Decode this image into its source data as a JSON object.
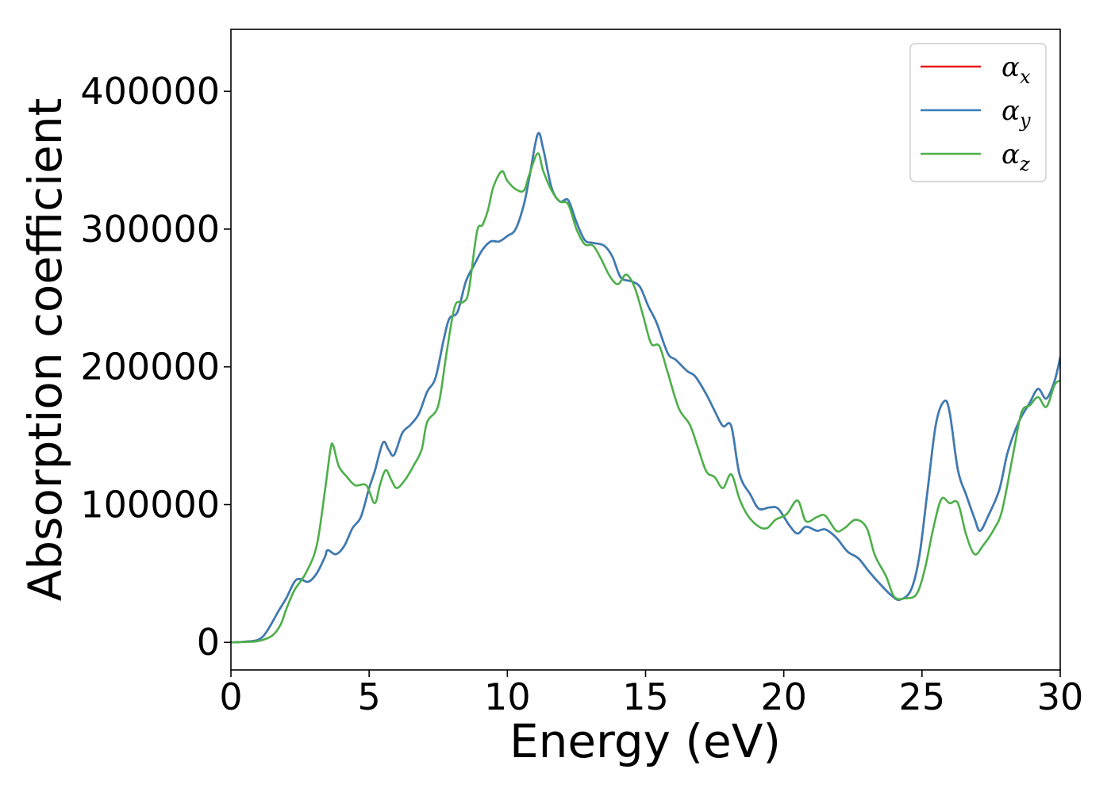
{
  "chart_data": {
    "type": "line",
    "title": "",
    "xlabel": "Energy (eV)",
    "ylabel": "Absorption coefficient",
    "xlim": [
      0,
      30
    ],
    "ylim": [
      -20000,
      445000
    ],
    "xticks": [
      0,
      5,
      10,
      15,
      20,
      25,
      30
    ],
    "xtick_labels": [
      "0",
      "5",
      "10",
      "15",
      "20",
      "25",
      "30"
    ],
    "yticks": [
      0,
      100000,
      200000,
      300000,
      400000
    ],
    "ytick_labels": [
      "0",
      "100000",
      "200000",
      "300000",
      "400000"
    ],
    "grid": false,
    "legend_position": "top-right",
    "series": [
      {
        "name": "αx",
        "symbol": "α",
        "subscript": "x",
        "color": "#e41a1c",
        "points": [
          [
            0,
            0
          ],
          [
            0.5,
            500
          ],
          [
            1.0,
            2000
          ],
          [
            1.3,
            8000
          ],
          [
            1.7,
            22000
          ],
          [
            2.0,
            32000
          ],
          [
            2.3,
            44000
          ],
          [
            2.5,
            46000
          ],
          [
            2.8,
            44000
          ],
          [
            3.1,
            50000
          ],
          [
            3.4,
            62000
          ],
          [
            3.5,
            67000
          ],
          [
            3.8,
            64000
          ],
          [
            4.1,
            70000
          ],
          [
            4.4,
            83000
          ],
          [
            4.7,
            91000
          ],
          [
            5.0,
            112000
          ],
          [
            5.2,
            124000
          ],
          [
            5.5,
            145000
          ],
          [
            5.7,
            140000
          ],
          [
            5.9,
            136000
          ],
          [
            6.2,
            152000
          ],
          [
            6.5,
            158000
          ],
          [
            6.8,
            166000
          ],
          [
            7.1,
            182000
          ],
          [
            7.4,
            192000
          ],
          [
            7.7,
            220000
          ],
          [
            7.9,
            235000
          ],
          [
            8.2,
            240000
          ],
          [
            8.5,
            262000
          ],
          [
            8.8,
            274000
          ],
          [
            9.1,
            285000
          ],
          [
            9.4,
            291000
          ],
          [
            9.7,
            291000
          ],
          [
            10.0,
            295000
          ],
          [
            10.3,
            300000
          ],
          [
            10.6,
            318000
          ],
          [
            10.8,
            338000
          ],
          [
            11.1,
            369000
          ],
          [
            11.3,
            358000
          ],
          [
            11.6,
            330000
          ],
          [
            11.9,
            320000
          ],
          [
            12.2,
            321000
          ],
          [
            12.5,
            305000
          ],
          [
            12.8,
            292000
          ],
          [
            13.1,
            290000
          ],
          [
            13.5,
            288000
          ],
          [
            13.8,
            280000
          ],
          [
            14.1,
            265000
          ],
          [
            14.5,
            262000
          ],
          [
            14.8,
            258000
          ],
          [
            15.1,
            244000
          ],
          [
            15.4,
            232000
          ],
          [
            15.8,
            210000
          ],
          [
            16.1,
            205000
          ],
          [
            16.5,
            197000
          ],
          [
            16.8,
            193000
          ],
          [
            17.2,
            180000
          ],
          [
            17.5,
            168000
          ],
          [
            17.8,
            157000
          ],
          [
            18.1,
            157000
          ],
          [
            18.4,
            122000
          ],
          [
            18.8,
            107000
          ],
          [
            19.1,
            97000
          ],
          [
            19.5,
            98000
          ],
          [
            19.8,
            97000
          ],
          [
            20.2,
            85000
          ],
          [
            20.5,
            79000
          ],
          [
            20.8,
            84000
          ],
          [
            21.2,
            81000
          ],
          [
            21.5,
            82000
          ],
          [
            21.9,
            76000
          ],
          [
            22.3,
            66000
          ],
          [
            22.7,
            61000
          ],
          [
            23.1,
            51000
          ],
          [
            23.5,
            42000
          ],
          [
            23.9,
            34000
          ],
          [
            24.2,
            31000
          ],
          [
            24.6,
            38000
          ],
          [
            24.9,
            62000
          ],
          [
            25.2,
            110000
          ],
          [
            25.5,
            158000
          ],
          [
            25.8,
            175000
          ],
          [
            26.0,
            167000
          ],
          [
            26.3,
            125000
          ],
          [
            26.6,
            107000
          ],
          [
            26.9,
            90000
          ],
          [
            27.1,
            81000
          ],
          [
            27.4,
            92000
          ],
          [
            27.8,
            111000
          ],
          [
            28.1,
            138000
          ],
          [
            28.5,
            160000
          ],
          [
            28.9,
            174000
          ],
          [
            29.2,
            184000
          ],
          [
            29.5,
            177000
          ],
          [
            29.8,
            190000
          ],
          [
            30.0,
            207000
          ]
        ]
      },
      {
        "name": "αy",
        "symbol": "α",
        "subscript": "y",
        "color": "#377eb8",
        "points": [
          [
            0,
            0
          ],
          [
            0.5,
            500
          ],
          [
            1.0,
            2000
          ],
          [
            1.3,
            8000
          ],
          [
            1.7,
            22000
          ],
          [
            2.0,
            32000
          ],
          [
            2.3,
            44000
          ],
          [
            2.5,
            46000
          ],
          [
            2.8,
            44000
          ],
          [
            3.1,
            50000
          ],
          [
            3.4,
            62000
          ],
          [
            3.5,
            67000
          ],
          [
            3.8,
            64000
          ],
          [
            4.1,
            70000
          ],
          [
            4.4,
            83000
          ],
          [
            4.7,
            91000
          ],
          [
            5.0,
            112000
          ],
          [
            5.2,
            124000
          ],
          [
            5.5,
            145000
          ],
          [
            5.7,
            140000
          ],
          [
            5.9,
            136000
          ],
          [
            6.2,
            152000
          ],
          [
            6.5,
            158000
          ],
          [
            6.8,
            166000
          ],
          [
            7.1,
            182000
          ],
          [
            7.4,
            192000
          ],
          [
            7.7,
            220000
          ],
          [
            7.9,
            235000
          ],
          [
            8.2,
            240000
          ],
          [
            8.5,
            262000
          ],
          [
            8.8,
            274000
          ],
          [
            9.1,
            285000
          ],
          [
            9.4,
            291000
          ],
          [
            9.7,
            291000
          ],
          [
            10.0,
            295000
          ],
          [
            10.3,
            300000
          ],
          [
            10.6,
            318000
          ],
          [
            10.8,
            338000
          ],
          [
            11.1,
            369000
          ],
          [
            11.3,
            358000
          ],
          [
            11.6,
            330000
          ],
          [
            11.9,
            320000
          ],
          [
            12.2,
            321000
          ],
          [
            12.5,
            305000
          ],
          [
            12.8,
            292000
          ],
          [
            13.1,
            290000
          ],
          [
            13.5,
            288000
          ],
          [
            13.8,
            280000
          ],
          [
            14.1,
            265000
          ],
          [
            14.5,
            262000
          ],
          [
            14.8,
            258000
          ],
          [
            15.1,
            244000
          ],
          [
            15.4,
            232000
          ],
          [
            15.8,
            210000
          ],
          [
            16.1,
            205000
          ],
          [
            16.5,
            197000
          ],
          [
            16.8,
            193000
          ],
          [
            17.2,
            180000
          ],
          [
            17.5,
            168000
          ],
          [
            17.8,
            157000
          ],
          [
            18.1,
            157000
          ],
          [
            18.4,
            122000
          ],
          [
            18.8,
            107000
          ],
          [
            19.1,
            97000
          ],
          [
            19.5,
            98000
          ],
          [
            19.8,
            97000
          ],
          [
            20.2,
            85000
          ],
          [
            20.5,
            79000
          ],
          [
            20.8,
            84000
          ],
          [
            21.2,
            81000
          ],
          [
            21.5,
            82000
          ],
          [
            21.9,
            76000
          ],
          [
            22.3,
            66000
          ],
          [
            22.7,
            61000
          ],
          [
            23.1,
            51000
          ],
          [
            23.5,
            42000
          ],
          [
            23.9,
            34000
          ],
          [
            24.2,
            31000
          ],
          [
            24.6,
            38000
          ],
          [
            24.9,
            62000
          ],
          [
            25.2,
            110000
          ],
          [
            25.5,
            158000
          ],
          [
            25.8,
            175000
          ],
          [
            26.0,
            167000
          ],
          [
            26.3,
            125000
          ],
          [
            26.6,
            107000
          ],
          [
            26.9,
            90000
          ],
          [
            27.1,
            81000
          ],
          [
            27.4,
            92000
          ],
          [
            27.8,
            111000
          ],
          [
            28.1,
            138000
          ],
          [
            28.5,
            160000
          ],
          [
            28.9,
            174000
          ],
          [
            29.2,
            184000
          ],
          [
            29.5,
            177000
          ],
          [
            29.8,
            190000
          ],
          [
            30.0,
            207000
          ]
        ]
      },
      {
        "name": "αz",
        "symbol": "α",
        "subscript": "z",
        "color": "#4daf4a",
        "points": [
          [
            0,
            0
          ],
          [
            0.5,
            300
          ],
          [
            1.0,
            1000
          ],
          [
            1.5,
            5000
          ],
          [
            1.8,
            13000
          ],
          [
            2.0,
            24000
          ],
          [
            2.3,
            38000
          ],
          [
            2.7,
            50000
          ],
          [
            3.1,
            70000
          ],
          [
            3.4,
            110000
          ],
          [
            3.6,
            140000
          ],
          [
            3.7,
            143000
          ],
          [
            3.9,
            128000
          ],
          [
            4.2,
            120000
          ],
          [
            4.5,
            114000
          ],
          [
            4.9,
            114000
          ],
          [
            5.2,
            101000
          ],
          [
            5.4,
            115000
          ],
          [
            5.6,
            125000
          ],
          [
            5.8,
            118000
          ],
          [
            6.0,
            112000
          ],
          [
            6.3,
            118000
          ],
          [
            6.6,
            128000
          ],
          [
            6.9,
            140000
          ],
          [
            7.1,
            160000
          ],
          [
            7.5,
            172000
          ],
          [
            7.8,
            210000
          ],
          [
            8.1,
            244000
          ],
          [
            8.4,
            247000
          ],
          [
            8.6,
            255000
          ],
          [
            8.9,
            298000
          ],
          [
            9.1,
            303000
          ],
          [
            9.3,
            314000
          ],
          [
            9.5,
            331000
          ],
          [
            9.8,
            342000
          ],
          [
            10.0,
            335000
          ],
          [
            10.3,
            329000
          ],
          [
            10.6,
            328000
          ],
          [
            10.8,
            340000
          ],
          [
            11.1,
            355000
          ],
          [
            11.3,
            342000
          ],
          [
            11.6,
            328000
          ],
          [
            11.9,
            320000
          ],
          [
            12.2,
            318000
          ],
          [
            12.5,
            300000
          ],
          [
            12.8,
            289000
          ],
          [
            13.1,
            288000
          ],
          [
            13.4,
            278000
          ],
          [
            13.7,
            266000
          ],
          [
            14.0,
            260000
          ],
          [
            14.3,
            267000
          ],
          [
            14.6,
            258000
          ],
          [
            14.9,
            238000
          ],
          [
            15.2,
            217000
          ],
          [
            15.5,
            215000
          ],
          [
            15.8,
            196000
          ],
          [
            16.2,
            170000
          ],
          [
            16.6,
            158000
          ],
          [
            16.9,
            141000
          ],
          [
            17.2,
            124000
          ],
          [
            17.5,
            120000
          ],
          [
            17.8,
            112000
          ],
          [
            18.1,
            122000
          ],
          [
            18.4,
            104000
          ],
          [
            18.7,
            92000
          ],
          [
            19.1,
            84000
          ],
          [
            19.4,
            83000
          ],
          [
            19.7,
            89000
          ],
          [
            20.1,
            93000
          ],
          [
            20.5,
            103000
          ],
          [
            20.8,
            88000
          ],
          [
            21.2,
            91000
          ],
          [
            21.5,
            92000
          ],
          [
            21.9,
            81000
          ],
          [
            22.2,
            83000
          ],
          [
            22.6,
            89000
          ],
          [
            23.0,
            83000
          ],
          [
            23.3,
            63000
          ],
          [
            23.7,
            48000
          ],
          [
            24.0,
            33000
          ],
          [
            24.4,
            32000
          ],
          [
            24.8,
            35000
          ],
          [
            25.1,
            53000
          ],
          [
            25.4,
            82000
          ],
          [
            25.7,
            104000
          ],
          [
            26.0,
            101000
          ],
          [
            26.3,
            101000
          ],
          [
            26.6,
            78000
          ],
          [
            26.9,
            64000
          ],
          [
            27.2,
            70000
          ],
          [
            27.6,
            82000
          ],
          [
            27.9,
            96000
          ],
          [
            28.3,
            137000
          ],
          [
            28.6,
            167000
          ],
          [
            28.9,
            172000
          ],
          [
            29.2,
            178000
          ],
          [
            29.5,
            171000
          ],
          [
            29.8,
            187000
          ],
          [
            30.0,
            190000
          ]
        ]
      }
    ]
  }
}
